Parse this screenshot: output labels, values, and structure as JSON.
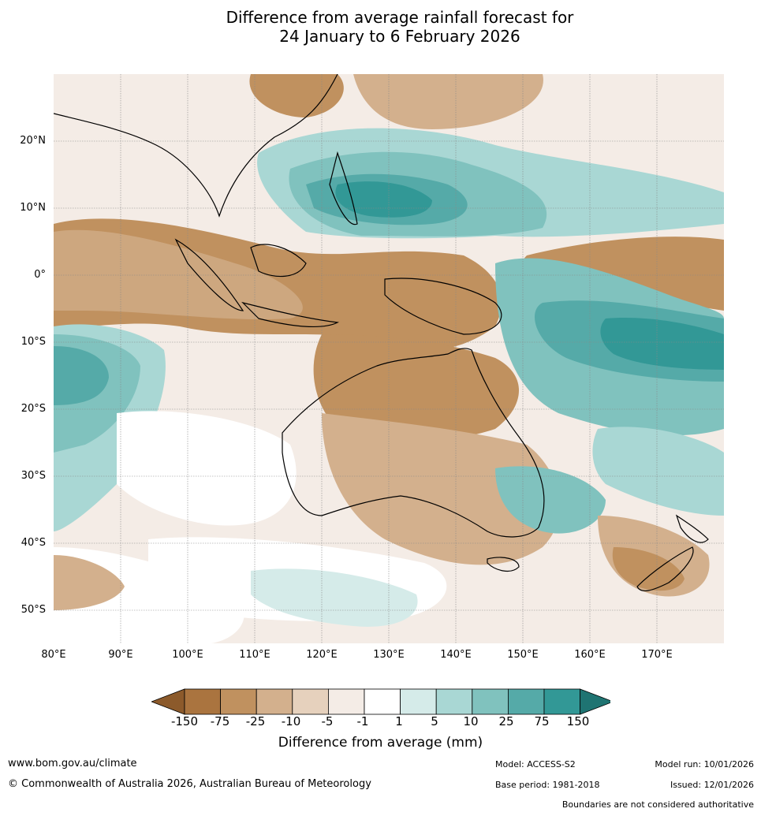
{
  "header": {
    "title_line1": "Difference from average rainfall forecast for",
    "title_line2": "24 January to 6 February 2026"
  },
  "map": {
    "lat_labels": [
      "20°N",
      "10°N",
      "0°",
      "10°S",
      "20°S",
      "30°S",
      "40°S",
      "50°S"
    ],
    "lon_labels": [
      "80°E",
      "90°E",
      "100°E",
      "110°E",
      "120°E",
      "130°E",
      "140°E",
      "150°E",
      "160°E",
      "170°E"
    ],
    "extent": {
      "lon_min": 80,
      "lon_max": 180,
      "lat_min": -55,
      "lat_max": 30
    },
    "grid": true
  },
  "legend": {
    "ticks": [
      "-150",
      "-75",
      "-25",
      "-10",
      "-5",
      "-1",
      "1",
      "5",
      "10",
      "25",
      "75",
      "150"
    ],
    "colors": [
      "#8c5a2b",
      "#aa743f",
      "#c0915f",
      "#d3b08d",
      "#e6d1bd",
      "#f4ece6",
      "#ffffff",
      "#d5ebe9",
      "#a9d7d4",
      "#80c2be",
      "#55aaa8",
      "#329896",
      "#1f7472"
    ],
    "title": "Difference from average (mm)"
  },
  "footer": {
    "website": "www.bom.gov.au/climate",
    "copyright": "© Commonwealth of Australia 2026, Australian Bureau of Meteorology",
    "model": "Model: ACCESS-S2",
    "base_period": "Base period: 1981-2018",
    "model_run": "Model run: 10/01/2026",
    "issued": "Issued: 12/01/2026",
    "disclaimer": "Boundaries are not considered authoritative"
  }
}
